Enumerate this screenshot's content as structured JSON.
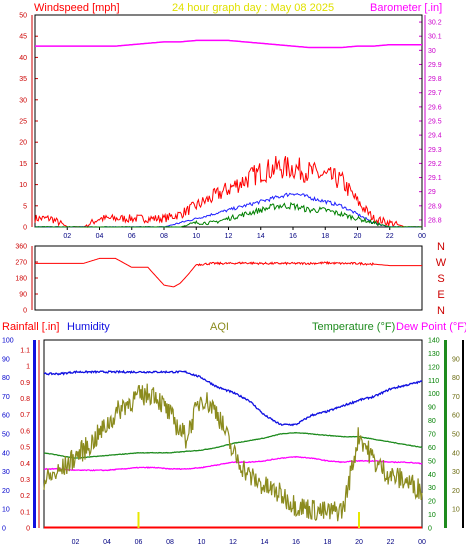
{
  "header": {
    "left_label": "Windspeed [mph]",
    "center_label": "24 hour graph day : May 08 2025",
    "right_label": "Barometer [.in]"
  },
  "wind_panel": {
    "left_ticks": [
      "0",
      "5",
      "10",
      "15",
      "20",
      "25",
      "30",
      "35",
      "40",
      "45",
      "50"
    ],
    "right_ticks": [
      "28.8",
      "28.9",
      "29",
      "29.1",
      "29.2",
      "29.3",
      "29.4",
      "29.5",
      "29.6",
      "29.7",
      "29.8",
      "29.9",
      "30",
      "30.1",
      "30.2"
    ],
    "x_ticks": [
      "02",
      "04",
      "06",
      "08",
      "10",
      "12",
      "14",
      "16",
      "18",
      "20",
      "22",
      "00"
    ]
  },
  "dir_panel": {
    "left_ticks": [
      "360",
      "270",
      "180",
      "90",
      "0"
    ],
    "compass": [
      "N",
      "W",
      "S",
      "E",
      "N"
    ]
  },
  "bottom_header": {
    "rain": "Rainfall [.in]",
    "humidity": "Humidity",
    "aqi": "AQI",
    "temperature": "Temperature (°F)",
    "dewpoint": "Dew Point (°F)"
  },
  "bottom_panel": {
    "rain_ticks": [
      "0",
      "0.1",
      "0.2",
      "0.3",
      "0.4",
      "0.5",
      "0.6",
      "0.7",
      "0.8",
      "0.9",
      "1",
      "1.1"
    ],
    "hum_ticks": [
      "0",
      "10",
      "20",
      "30",
      "40",
      "50",
      "60",
      "70",
      "80",
      "90",
      "100"
    ],
    "temp_ticks": [
      "0",
      "10",
      "20",
      "30",
      "40",
      "50",
      "60",
      "70",
      "80",
      "90",
      "100",
      "110",
      "120",
      "130",
      "140"
    ],
    "aqi_ticks": [
      "10",
      "20",
      "30",
      "40",
      "50",
      "60",
      "70",
      "80",
      "90"
    ],
    "x_ticks": [
      "02",
      "04",
      "06",
      "08",
      "10",
      "12",
      "14",
      "16",
      "18",
      "20",
      "22",
      "00"
    ]
  },
  "colors": {
    "wind_gust": "#ff0000",
    "wind_avg": "#2020ff",
    "wind_low": "#008000",
    "barometer": "#ff00ff",
    "direction": "#ff0000",
    "rain": "#ff0000",
    "humidity": "#1010e0",
    "aqi": "#8b8b1e",
    "temperature": "#1e8b1e",
    "dewpoint": "#ff00ff"
  },
  "chart_data": [
    {
      "type": "line",
      "title": "24 hour graph day : May 08 2025",
      "xlabel": "",
      "ylabel": "Windspeed [mph]",
      "y2label": "Barometer [.in]",
      "x_hours": [
        0,
        1,
        2,
        3,
        4,
        5,
        6,
        7,
        8,
        9,
        10,
        11,
        12,
        13,
        14,
        15,
        16,
        17,
        18,
        19,
        20,
        21,
        22,
        23,
        24
      ],
      "ylim": [
        0,
        50
      ],
      "y2lim": [
        28.75,
        30.25
      ],
      "series": [
        {
          "name": "Windspeed gust",
          "axis": "left",
          "values": [
            2,
            2,
            0,
            0,
            2,
            2,
            2,
            2,
            2,
            3,
            5,
            7,
            9,
            11,
            13,
            14,
            14,
            13,
            12,
            11,
            6,
            2,
            1,
            0,
            0
          ]
        },
        {
          "name": "Windspeed average",
          "axis": "left",
          "values": [
            0,
            0,
            0,
            0,
            0,
            0,
            0,
            0,
            0,
            1,
            2,
            3,
            4,
            5,
            6,
            7,
            8,
            7,
            6,
            5,
            3,
            1,
            0,
            0,
            0
          ]
        },
        {
          "name": "Windspeed low",
          "axis": "left",
          "values": [
            0,
            0,
            0,
            0,
            0,
            0,
            0,
            0,
            0,
            0,
            1,
            1,
            2,
            3,
            4,
            5,
            5,
            4,
            4,
            3,
            2,
            1,
            0,
            0,
            0
          ]
        },
        {
          "name": "Barometer",
          "axis": "right",
          "values": [
            30.03,
            30.03,
            30.03,
            30.03,
            30.03,
            30.03,
            30.04,
            30.05,
            30.06,
            30.06,
            30.07,
            30.07,
            30.07,
            30.06,
            30.05,
            30.04,
            30.03,
            30.02,
            30.02,
            30.02,
            30.03,
            30.03,
            30.04,
            30.04,
            30.04
          ]
        }
      ]
    },
    {
      "type": "line",
      "ylabel": "Wind direction",
      "x_hours": [
        0,
        1,
        2,
        3,
        4,
        5,
        6,
        7,
        8,
        8.6,
        9,
        9.5,
        10,
        11,
        12,
        13,
        14,
        15,
        16,
        17,
        18,
        19,
        20,
        21,
        22,
        23,
        24
      ],
      "ylim": [
        0,
        360
      ],
      "series": [
        {
          "name": "Wind direction",
          "values": [
            262,
            262,
            262,
            262,
            290,
            290,
            240,
            240,
            140,
            130,
            150,
            200,
            255,
            262,
            262,
            265,
            262,
            262,
            262,
            262,
            265,
            262,
            262,
            258,
            250,
            250,
            250
          ]
        }
      ]
    },
    {
      "type": "line",
      "x_hours": [
        0,
        1,
        2,
        3,
        4,
        5,
        6,
        7,
        8,
        9,
        10,
        11,
        12,
        13,
        14,
        15,
        16,
        17,
        18,
        19,
        20,
        21,
        22,
        23,
        24
      ],
      "series": [
        {
          "name": "Rainfall",
          "axis": "rain",
          "ylim": [
            0,
            1.1
          ],
          "values": [
            0,
            0,
            0,
            0,
            0,
            0,
            0,
            0,
            0,
            0,
            0,
            0,
            0,
            0,
            0,
            0,
            0,
            0,
            0,
            0,
            0,
            0,
            0,
            0,
            0
          ]
        },
        {
          "name": "Humidity",
          "axis": "humidity",
          "ylim": [
            0,
            100
          ],
          "values": [
            82,
            82,
            83,
            83,
            83,
            83,
            83,
            83,
            83,
            83,
            80,
            75,
            72,
            68,
            60,
            55,
            55,
            60,
            62,
            65,
            68,
            70,
            74,
            76,
            78
          ]
        },
        {
          "name": "AQI",
          "axis": "aqi",
          "ylim": [
            0,
            100
          ],
          "values": [
            25,
            30,
            38,
            45,
            55,
            65,
            70,
            72,
            60,
            48,
            70,
            62,
            40,
            28,
            22,
            18,
            12,
            10,
            8,
            10,
            50,
            35,
            28,
            25,
            20
          ]
        },
        {
          "name": "Temperature",
          "axis": "temp",
          "ylim": [
            0,
            140
          ],
          "values": [
            56,
            54,
            52,
            53,
            54,
            55,
            56,
            56,
            56,
            57,
            58,
            60,
            63,
            65,
            67,
            70,
            71,
            70,
            69,
            68,
            68,
            66,
            64,
            62,
            60
          ]
        },
        {
          "name": "Dew Point",
          "axis": "temp",
          "ylim": [
            0,
            140
          ],
          "values": [
            44,
            44,
            43,
            43,
            43,
            44,
            45,
            45,
            44,
            44,
            45,
            47,
            49,
            49,
            50,
            52,
            53,
            52,
            50,
            49,
            50,
            50,
            49,
            49,
            48
          ]
        }
      ]
    }
  ]
}
